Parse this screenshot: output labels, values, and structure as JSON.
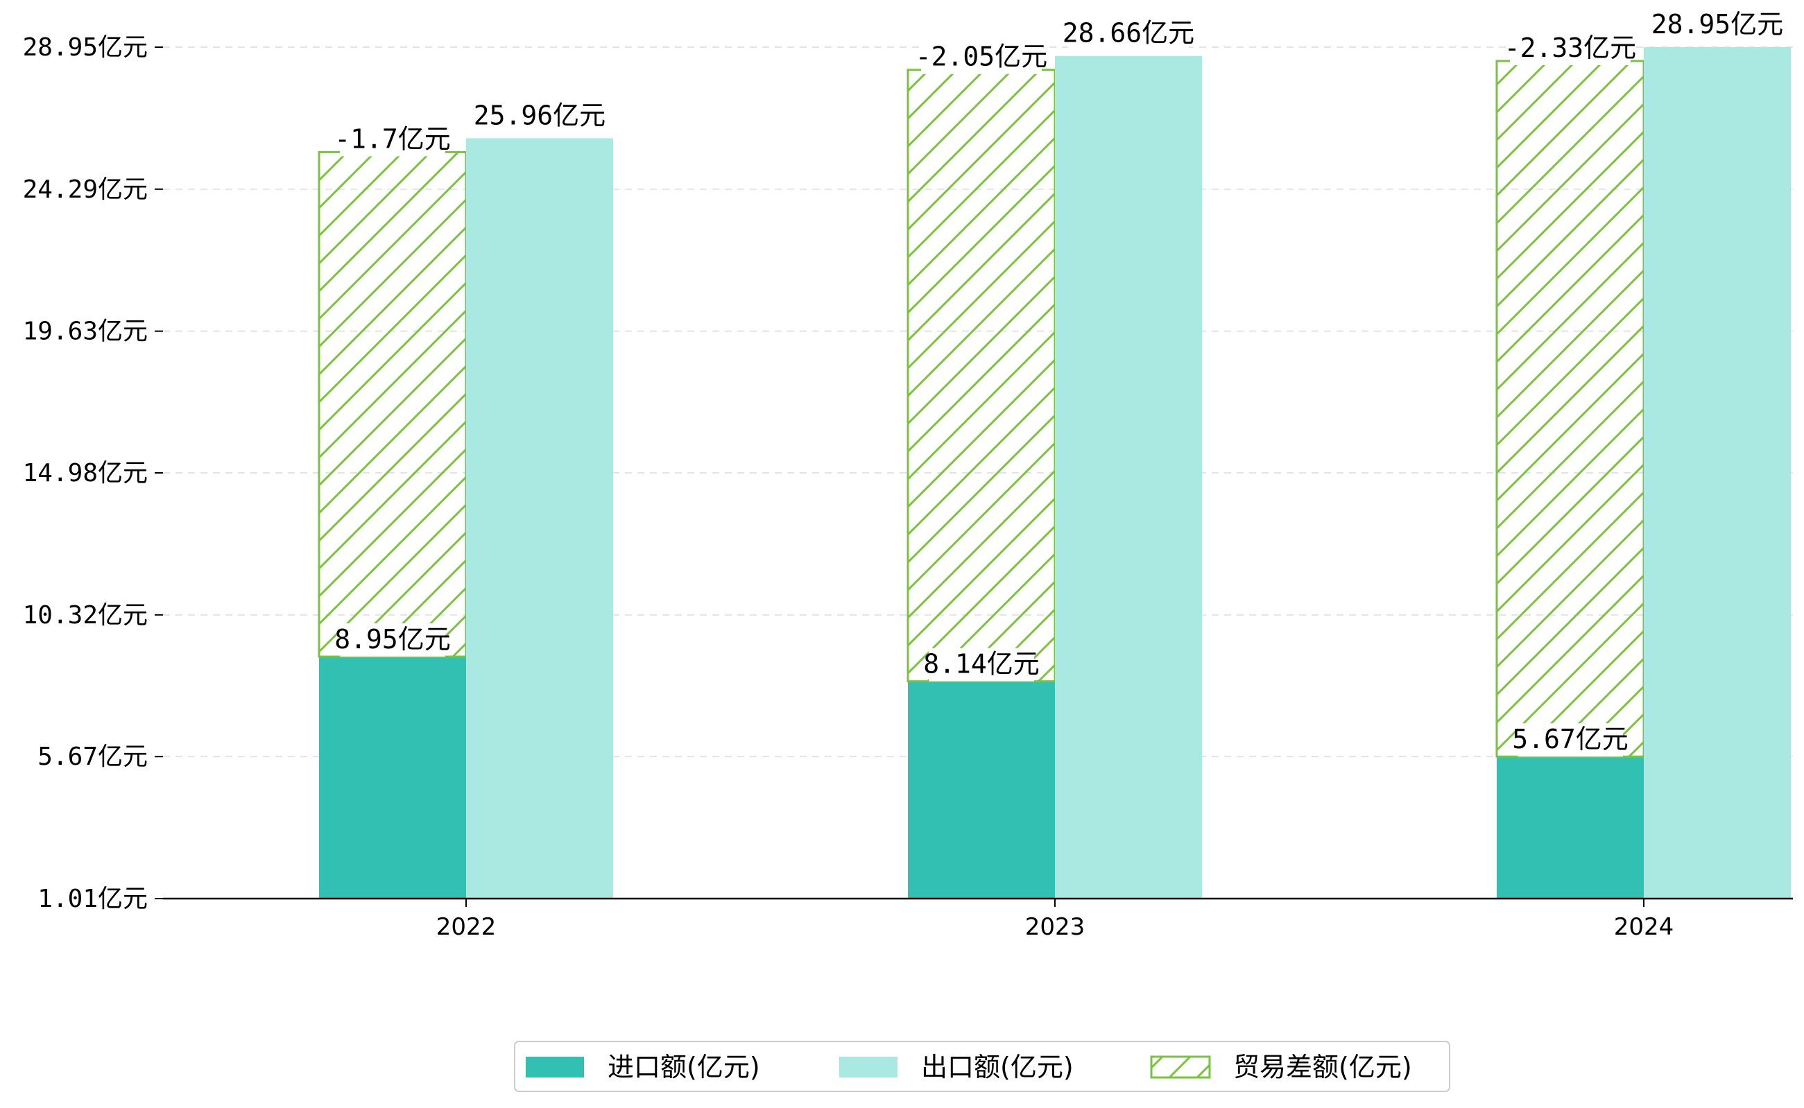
{
  "chart_data": {
    "type": "bar",
    "categories": [
      "2022",
      "2023",
      "2024"
    ],
    "series": [
      {
        "name": "进口额(亿元)",
        "values": [
          8.95,
          8.14,
          5.67
        ],
        "labels": [
          "8.95亿元",
          "8.14亿元",
          "5.67亿元"
        ]
      },
      {
        "name": "出口额(亿元)",
        "values": [
          25.96,
          28.66,
          28.95
        ],
        "labels": [
          "25.96亿元",
          "28.66亿元",
          "28.95亿元"
        ]
      },
      {
        "name": "贸易差额(亿元)",
        "values": [
          -1.7,
          -2.05,
          -2.33
        ],
        "labels": [
          "-1.7亿元",
          "-2.05亿元",
          "-2.33亿元"
        ]
      }
    ],
    "yticks": [
      1.01,
      5.67,
      10.32,
      14.98,
      19.63,
      24.29,
      28.95
    ],
    "ytick_labels": [
      "1.01亿元",
      "5.67亿元",
      "10.32亿元",
      "14.98亿元",
      "19.63亿元",
      "24.29亿元",
      "28.95亿元"
    ],
    "ylim": [
      1.01,
      28.95
    ],
    "grid": true,
    "legend_position": "bottom-center",
    "colors": {
      "import": "#31c0b2",
      "export": "#aae8e2",
      "balance_hatch": "#7cc242"
    }
  }
}
